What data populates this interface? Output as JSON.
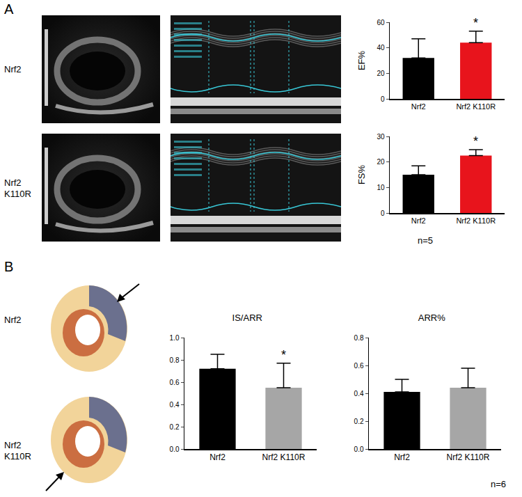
{
  "panel_labels": [
    "A",
    "B"
  ],
  "row_labels": [
    "Nrf2",
    "Nrf2 K110R"
  ],
  "sample_sizes": [
    "n=5",
    "n=6"
  ],
  "chart_data": [
    {
      "type": "bar",
      "panel": "A",
      "ylabel": "EF%",
      "categories": [
        "Nrf2",
        "Nrf2 K110R"
      ],
      "values": [
        32,
        44
      ],
      "errors": [
        15,
        9
      ],
      "colors": [
        "#000000",
        "#e8141c"
      ],
      "ylim": [
        0,
        60
      ],
      "yticks": [
        0,
        20,
        40,
        60
      ],
      "grid": false,
      "annotations": [
        {
          "x": "Nrf2 K110R",
          "text": "*"
        }
      ]
    },
    {
      "type": "bar",
      "panel": "A",
      "ylabel": "FS%",
      "categories": [
        "Nrf2",
        "Nrf2 K110R"
      ],
      "values": [
        15,
        22.5
      ],
      "errors": [
        3.5,
        2.3
      ],
      "colors": [
        "#000000",
        "#e8141c"
      ],
      "ylim": [
        0,
        30
      ],
      "yticks": [
        0,
        10,
        20,
        30
      ],
      "grid": false,
      "annotations": [
        {
          "x": "Nrf2 K110R",
          "text": "*"
        }
      ]
    },
    {
      "type": "bar",
      "panel": "B",
      "title": "IS/ARR",
      "categories": [
        "Nrf2",
        "Nrf2 K110R"
      ],
      "values": [
        0.72,
        0.55
      ],
      "errors": [
        0.13,
        0.22
      ],
      "colors": [
        "#000000",
        "#a6a6a6"
      ],
      "ylim": [
        0,
        1.0
      ],
      "yticks": [
        {
          "value": 0,
          "label": "0.0"
        },
        0.2,
        0.4,
        0.6,
        0.8,
        {
          "value": 1,
          "label": "1.0"
        }
      ],
      "grid": false,
      "annotations": [
        {
          "x": "Nrf2 K110R",
          "text": "*"
        }
      ]
    },
    {
      "type": "bar",
      "panel": "B",
      "title": "ARR%",
      "categories": [
        "Nrf2",
        "Nrf2 K110R"
      ],
      "values": [
        0.41,
        0.44
      ],
      "errors": [
        0.09,
        0.14
      ],
      "colors": [
        "#000000",
        "#a6a6a6"
      ],
      "ylim": [
        0,
        0.8
      ],
      "yticks": [
        {
          "value": 0,
          "label": "0.0"
        },
        0.2,
        0.4,
        0.6,
        0.8
      ],
      "grid": false
    }
  ]
}
